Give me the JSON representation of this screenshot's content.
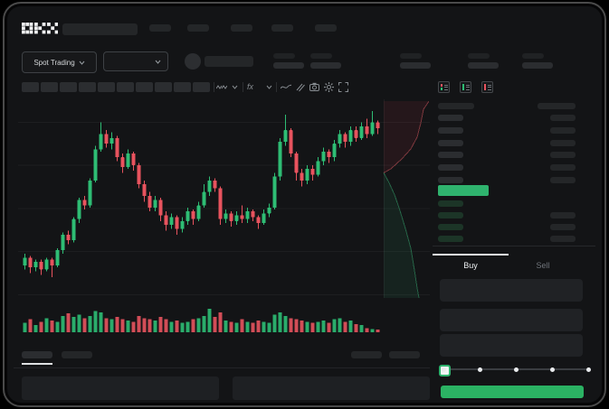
{
  "brand": {
    "logo": "OKX"
  },
  "market_selector": {
    "label": "Spot Trading"
  },
  "toolbar": {
    "icons": [
      "candle-style-icon",
      "chevron-down-icon",
      "indicators-icon",
      "chevron-down-icon",
      "line-tool-icon",
      "compare-icon",
      "camera-icon",
      "settings-icon",
      "fullscreen-icon"
    ],
    "timeframe_slots": 10
  },
  "orderbook": {
    "view_icons": [
      "orderbook-both-icon",
      "orderbook-bids-icon",
      "orderbook-asks-icon"
    ],
    "ask_rows": 6,
    "bid_rows": 4,
    "bid_rows_with_amount": [
      false,
      true,
      true,
      true
    ]
  },
  "order_panel": {
    "buy_tab": "Buy",
    "sell_tab": "Sell",
    "active_tab": "Buy",
    "input_rows": 3,
    "slider": {
      "percent": 0,
      "stops": [
        0,
        25,
        50,
        75,
        100
      ]
    }
  },
  "bottom_bar": {
    "tabs": 2,
    "active_tab_index": 0,
    "right_buttons": 2,
    "panels": 2
  },
  "colors": {
    "up": "#2ebd74",
    "down": "#e8535e",
    "last_price_bar": "#2fb36e",
    "buy_button": "#2bb263",
    "tab_active_line": "#e9ebed",
    "sell_tab_text": "#70757b",
    "grid": "rgba(255,255,255,0.045)"
  },
  "chart_data": {
    "type": "candlestick",
    "candles": [
      [
        14,
        18,
        20,
        12
      ],
      [
        18,
        13,
        19,
        10
      ],
      [
        13,
        16,
        17,
        11
      ],
      [
        16,
        12,
        17,
        9
      ],
      [
        12,
        17,
        18,
        11
      ],
      [
        17,
        14,
        18,
        8
      ],
      [
        14,
        22,
        23,
        13
      ],
      [
        22,
        30,
        31,
        20
      ],
      [
        30,
        27,
        32,
        25
      ],
      [
        27,
        38,
        39,
        26
      ],
      [
        38,
        48,
        49,
        36
      ],
      [
        48,
        45,
        50,
        43
      ],
      [
        45,
        58,
        59,
        44
      ],
      [
        58,
        74,
        76,
        57
      ],
      [
        74,
        82,
        88,
        73
      ],
      [
        82,
        77,
        84,
        75
      ],
      [
        77,
        80,
        83,
        74
      ],
      [
        80,
        70,
        81,
        68
      ],
      [
        70,
        65,
        72,
        62
      ],
      [
        65,
        72,
        74,
        64
      ],
      [
        72,
        66,
        73,
        63
      ],
      [
        66,
        56,
        67,
        54
      ],
      [
        56,
        50,
        58,
        47
      ],
      [
        50,
        44,
        52,
        42
      ],
      [
        44,
        48,
        50,
        42
      ],
      [
        48,
        40,
        49,
        37
      ],
      [
        40,
        35,
        42,
        32
      ],
      [
        35,
        39,
        41,
        33
      ],
      [
        39,
        33,
        40,
        30
      ],
      [
        33,
        37,
        39,
        31
      ],
      [
        37,
        42,
        44,
        35
      ],
      [
        42,
        38,
        43,
        35
      ],
      [
        38,
        45,
        47,
        37
      ],
      [
        45,
        52,
        56,
        44
      ],
      [
        52,
        58,
        60,
        50
      ],
      [
        58,
        54,
        59,
        52
      ],
      [
        54,
        38,
        55,
        35
      ],
      [
        38,
        41,
        43,
        36
      ],
      [
        41,
        37,
        42,
        34
      ],
      [
        37,
        40,
        42,
        35
      ],
      [
        40,
        38,
        45,
        36
      ],
      [
        38,
        42,
        44,
        36
      ],
      [
        42,
        39,
        43,
        37
      ],
      [
        39,
        36,
        40,
        33
      ],
      [
        36,
        41,
        43,
        35
      ],
      [
        41,
        44,
        46,
        39
      ],
      [
        44,
        60,
        62,
        43
      ],
      [
        60,
        78,
        80,
        58
      ],
      [
        78,
        84,
        92,
        76
      ],
      [
        84,
        72,
        85,
        70
      ],
      [
        72,
        62,
        73,
        58
      ],
      [
        62,
        58,
        64,
        55
      ],
      [
        58,
        64,
        66,
        56
      ],
      [
        64,
        61,
        66,
        58
      ],
      [
        61,
        68,
        70,
        60
      ],
      [
        68,
        73,
        75,
        66
      ],
      [
        73,
        70,
        74,
        67
      ],
      [
        70,
        77,
        79,
        68
      ],
      [
        77,
        82,
        84,
        75
      ],
      [
        82,
        78,
        83,
        75
      ],
      [
        78,
        84,
        86,
        76
      ],
      [
        84,
        80,
        86,
        78
      ],
      [
        80,
        86,
        88,
        79
      ],
      [
        86,
        82,
        90,
        80
      ],
      [
        82,
        88,
        94,
        81
      ],
      [
        88,
        85,
        89,
        82
      ]
    ],
    "volumes": [
      40,
      55,
      30,
      45,
      60,
      50,
      45,
      70,
      80,
      65,
      75,
      60,
      70,
      90,
      85,
      60,
      55,
      65,
      55,
      50,
      45,
      70,
      60,
      55,
      50,
      65,
      55,
      45,
      50,
      40,
      45,
      55,
      60,
      70,
      100,
      65,
      85,
      50,
      45,
      40,
      55,
      45,
      40,
      50,
      45,
      40,
      75,
      85,
      70,
      60,
      55,
      50,
      45,
      40,
      45,
      50,
      40,
      55,
      60,
      45,
      50,
      35,
      30,
      18,
      14,
      12
    ],
    "depth": {
      "asks": [
        [
          1,
          0.01
        ],
        [
          0.88,
          0.05
        ],
        [
          0.82,
          0.12
        ],
        [
          0.74,
          0.19
        ],
        [
          0.6,
          0.25
        ],
        [
          0.4,
          0.3
        ],
        [
          0.16,
          0.35
        ],
        [
          0,
          0.37
        ]
      ],
      "bids": [
        [
          0,
          0.37
        ],
        [
          0.12,
          0.42
        ],
        [
          0.24,
          0.48
        ],
        [
          0.36,
          0.56
        ],
        [
          0.48,
          0.65
        ],
        [
          0.6,
          0.75
        ],
        [
          0.68,
          0.86
        ],
        [
          0.74,
          0.95
        ],
        [
          0.78,
          1.0
        ]
      ]
    },
    "gridlines": 5
  }
}
